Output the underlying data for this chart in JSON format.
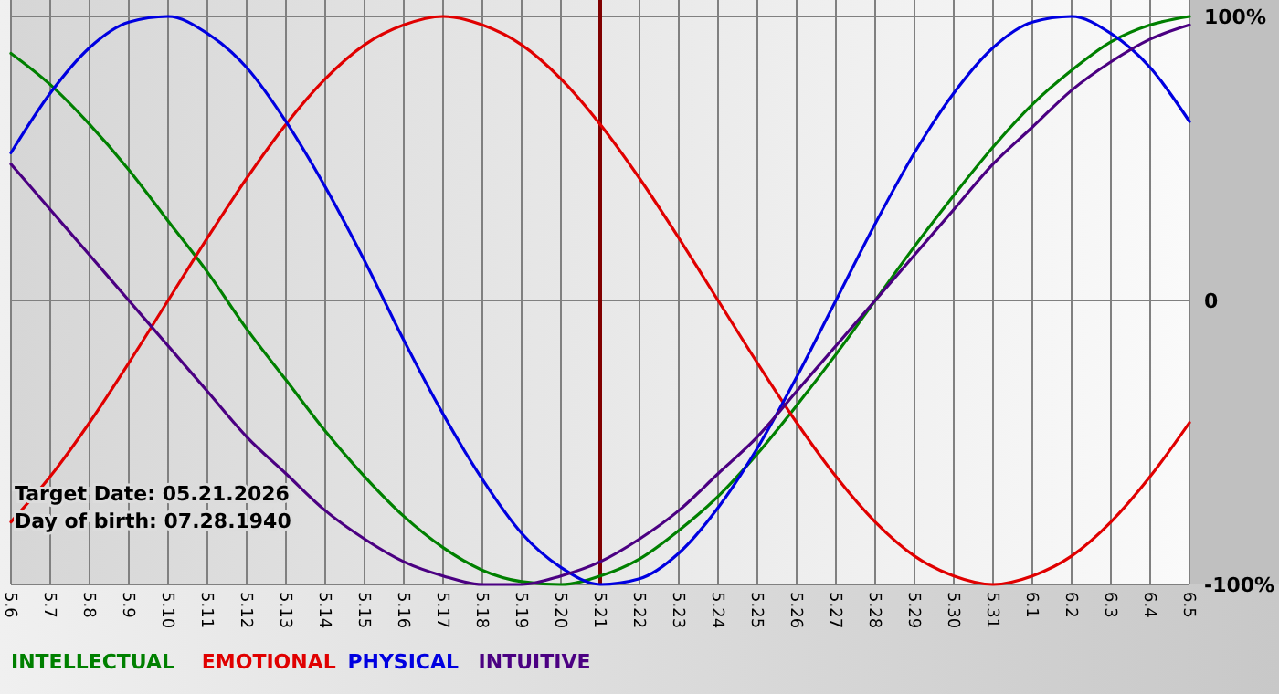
{
  "chart_data": {
    "type": "line",
    "categories": [
      "5.6",
      "5.7",
      "5.8",
      "5.9",
      "5.10",
      "5.11",
      "5.12",
      "5.13",
      "5.14",
      "5.15",
      "5.16",
      "5.17",
      "5.18",
      "5.19",
      "5.20",
      "5.21",
      "5.22",
      "5.23",
      "5.24",
      "5.25",
      "5.26",
      "5.27",
      "5.28",
      "5.29",
      "5.30",
      "5.31",
      "6.1",
      "6.2",
      "6.3",
      "6.4",
      "6.5"
    ],
    "series": [
      {
        "name": "INTELLECTUAL",
        "color": "#008000",
        "values": [
          87,
          76,
          62,
          46,
          28,
          10,
          -10,
          -28,
          -46,
          -62,
          -76,
          -87,
          -95,
          -99,
          -100,
          -97,
          -91,
          -81,
          -69,
          -54,
          -37,
          -19,
          0,
          19,
          37,
          54,
          69,
          81,
          91,
          97,
          100
        ]
      },
      {
        "name": "EMOTIONAL",
        "color": "#e00000",
        "values": [
          -78,
          -62,
          -43,
          -22,
          0,
          22,
          43,
          62,
          78,
          90,
          97,
          100,
          97,
          90,
          78,
          62,
          43,
          22,
          0,
          -22,
          -43,
          -62,
          -78,
          -90,
          -97,
          -100,
          -97,
          -90,
          -78,
          -62,
          -43
        ]
      },
      {
        "name": "PHYSICAL",
        "color": "#0000e0",
        "values": [
          52,
          73,
          89,
          98,
          100,
          94,
          82,
          63,
          40,
          14,
          -14,
          -40,
          -63,
          -82,
          -94,
          -100,
          -98,
          -89,
          -73,
          -52,
          -27,
          0,
          27,
          52,
          73,
          89,
          98,
          100,
          94,
          82,
          63
        ]
      },
      {
        "name": "INTUITIVE",
        "color": "#4b0082",
        "values": [
          48,
          32,
          16,
          0,
          -16,
          -32,
          -48,
          -61,
          -74,
          -84,
          -92,
          -97,
          -100,
          -100,
          -97,
          -92,
          -84,
          -74,
          -61,
          -48,
          -32,
          -16,
          0,
          16,
          32,
          48,
          61,
          74,
          84,
          92,
          97
        ]
      }
    ],
    "ylim": [
      -100,
      100
    ],
    "yticks": [
      {
        "value": 100,
        "label": "100%"
      },
      0,
      {
        "value": -100,
        "label": "-100%"
      }
    ],
    "ref_lines": [
      {
        "axis": "x",
        "value": "5.21",
        "color": "#800000"
      }
    ],
    "annotations": [
      "Target Date: 05.21.2026",
      "Day of birth: 07.28.1940"
    ],
    "grid": true,
    "legend": "bottom",
    "marker": "none",
    "line_style": "solid"
  }
}
